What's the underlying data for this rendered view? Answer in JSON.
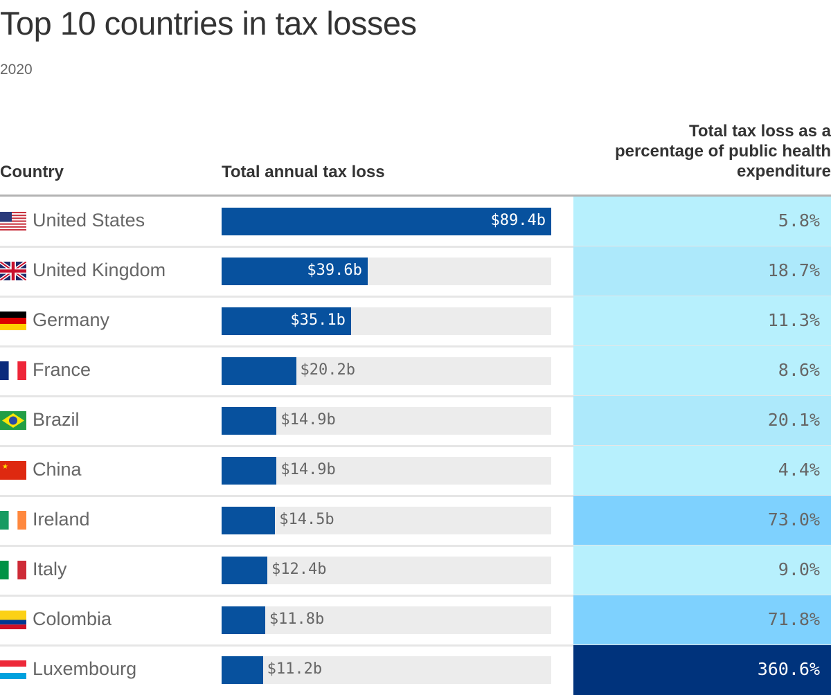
{
  "title": "Top 10 countries in tax losses",
  "subtitle": "2020",
  "chart_data": {
    "type": "table",
    "columns": [
      "Country",
      "Total annual tax loss",
      "Total tax loss as a percentage of public health expenditure"
    ],
    "rows": [
      {
        "country": "United States",
        "flag": "us-flag",
        "loss": 89.4,
        "loss_label": "$89.4b",
        "pct": 5.8,
        "pct_label": "5.8%",
        "color": "#b7f0fd"
      },
      {
        "country": "United Kingdom",
        "flag": "uk-flag",
        "loss": 39.6,
        "loss_label": "$39.6b",
        "pct": 18.7,
        "pct_label": "18.7%",
        "color": "#ade9fb"
      },
      {
        "country": "Germany",
        "flag": "germany-flag",
        "loss": 35.1,
        "loss_label": "$35.1b",
        "pct": 11.3,
        "pct_label": "11.3%",
        "color": "#b7f0fd"
      },
      {
        "country": "France",
        "flag": "france-flag",
        "loss": 20.2,
        "loss_label": "$20.2b",
        "pct": 8.6,
        "pct_label": "8.6%",
        "color": "#b7f0fd"
      },
      {
        "country": "Brazil",
        "flag": "brazil-flag",
        "loss": 14.9,
        "loss_label": "$14.9b",
        "pct": 20.1,
        "pct_label": "20.1%",
        "color": "#ade9fb"
      },
      {
        "country": "China",
        "flag": "china-flag",
        "loss": 14.9,
        "loss_label": "$14.9b",
        "pct": 4.4,
        "pct_label": "4.4%",
        "color": "#b7f0fd"
      },
      {
        "country": "Ireland",
        "flag": "ireland-flag",
        "loss": 14.5,
        "loss_label": "$14.5b",
        "pct": 73.0,
        "pct_label": "73.0%",
        "color": "#7ed1fe"
      },
      {
        "country": "Italy",
        "flag": "italy-flag",
        "loss": 12.4,
        "loss_label": "$12.4b",
        "pct": 9.0,
        "pct_label": "9.0%",
        "color": "#b7f0fd"
      },
      {
        "country": "Colombia",
        "flag": "colombia-flag",
        "loss": 11.8,
        "loss_label": "$11.8b",
        "pct": 71.8,
        "pct_label": "71.8%",
        "color": "#7ed1fe"
      },
      {
        "country": "Luxembourg",
        "flag": "luxembourg-flag",
        "loss": 11.2,
        "loss_label": "$11.2b",
        "pct": 360.6,
        "pct_label": "360.6%",
        "color": "#00337c"
      }
    ],
    "bar_color": "#07519e",
    "bar_max": 89.4
  }
}
